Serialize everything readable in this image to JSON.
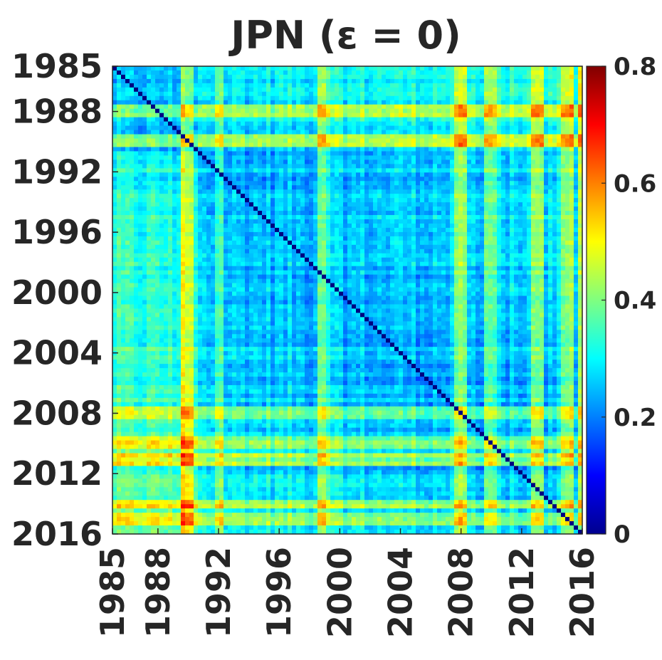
{
  "chart_data": {
    "type": "heatmap",
    "title": "JPN (ε = 0)",
    "x_ticks": [
      "1985",
      "1988",
      "1992",
      "1996",
      "2000",
      "2004",
      "2008",
      "2012",
      "2016"
    ],
    "y_ticks": [
      "1985",
      "1988",
      "1992",
      "1996",
      "2000",
      "2004",
      "2008",
      "2012",
      "2016"
    ],
    "x_range": [
      1985,
      2016
    ],
    "y_range": [
      1985,
      2016
    ],
    "colorbar": {
      "colormap": "jet",
      "range": [
        0,
        0.8
      ],
      "ticks": [
        "0",
        "0.2",
        "0.4",
        "0.6",
        "0.8"
      ]
    },
    "grid": false,
    "description_values": {
      "diagonal": 0.0,
      "typical_off_diagonal": 0.28,
      "high_rows_years": [
        1988,
        1990,
        2008,
        2010,
        2011,
        2014,
        2015
      ],
      "high_cols_years": [
        1990,
        1992,
        1999,
        2008,
        2010,
        2013,
        2015,
        2016
      ]
    }
  }
}
